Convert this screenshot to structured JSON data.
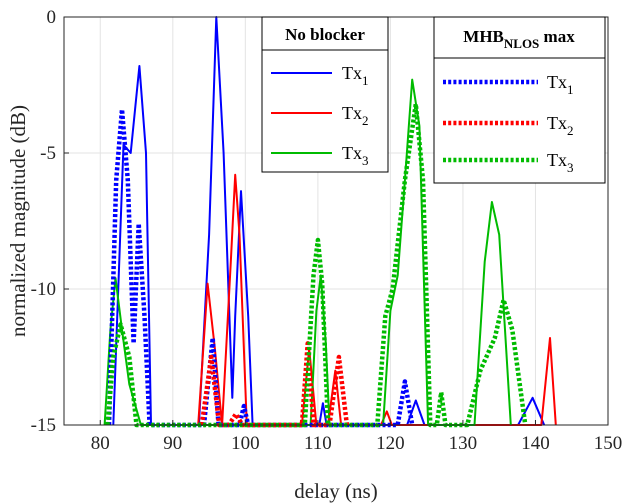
{
  "chart_data": {
    "type": "line",
    "xlabel": "delay (ns)",
    "ylabel": "normalized magnitude (dB)",
    "xlim": [
      75,
      150
    ],
    "ylim": [
      -15,
      0
    ],
    "xticks": [
      80,
      90,
      100,
      110,
      120,
      130,
      140,
      150
    ],
    "yticks": [
      -15,
      -10,
      -5,
      0
    ],
    "grid": true,
    "legends": [
      {
        "title": "No blocker",
        "placement": "top-center",
        "style": "solid",
        "entries": [
          {
            "base": "Tx",
            "sub": "1"
          },
          {
            "base": "Tx",
            "sub": "2"
          },
          {
            "base": "Tx",
            "sub": "3"
          }
        ]
      },
      {
        "title_base": "MHB",
        "title_sub": "NLOS",
        "title_tail": " max",
        "placement": "top-right",
        "style": "dotted",
        "entries": [
          {
            "base": "Tx",
            "sub": "1"
          },
          {
            "base": "Tx",
            "sub": "2"
          },
          {
            "base": "Tx",
            "sub": "3"
          }
        ]
      }
    ],
    "series": [
      {
        "color": "#0000ff",
        "style": "solid",
        "points": [
          [
            81.8,
            -15
          ],
          [
            83.2,
            -4.7
          ],
          [
            84.2,
            -5
          ],
          [
            85.4,
            -1.8
          ],
          [
            86.3,
            -5
          ],
          [
            87,
            -15
          ],
          [
            93.6,
            -15
          ],
          [
            95.0,
            -8
          ],
          [
            96.0,
            0
          ],
          [
            97.0,
            -5
          ],
          [
            98.2,
            -14
          ],
          [
            98.6,
            -11
          ],
          [
            99.4,
            -6.4
          ],
          [
            100.4,
            -11
          ],
          [
            101.0,
            -15
          ],
          [
            110.2,
            -15
          ],
          [
            110.7,
            -14.2
          ],
          [
            111.2,
            -15
          ],
          [
            122.3,
            -15
          ],
          [
            123.5,
            -14.1
          ],
          [
            124.7,
            -15
          ],
          [
            137.6,
            -15
          ],
          [
            139.6,
            -14.0
          ],
          [
            141.2,
            -15
          ]
        ]
      },
      {
        "color": "#ff0000",
        "style": "solid",
        "points": [
          [
            93.5,
            -15
          ],
          [
            94.8,
            -9.8
          ],
          [
            95.8,
            -12.2
          ],
          [
            96.8,
            -15
          ],
          [
            96.8,
            -15
          ],
          [
            98.0,
            -9
          ],
          [
            98.6,
            -5.8
          ],
          [
            99.2,
            -8
          ],
          [
            100.2,
            -15
          ],
          [
            107.8,
            -15
          ],
          [
            108.8,
            -12.2
          ],
          [
            109.8,
            -15
          ],
          [
            111.4,
            -15
          ],
          [
            112.4,
            -13.0
          ],
          [
            113.2,
            -15
          ],
          [
            118.7,
            -15
          ],
          [
            119.5,
            -14.5
          ],
          [
            120.2,
            -15
          ],
          [
            140.8,
            -15
          ],
          [
            142.0,
            -11.8
          ],
          [
            142.8,
            -15
          ]
        ]
      },
      {
        "color": "#00bb00",
        "style": "solid",
        "points": [
          [
            80.6,
            -15
          ],
          [
            81.4,
            -11.5
          ],
          [
            82.1,
            -9.6
          ],
          [
            83.0,
            -11.5
          ],
          [
            84.0,
            -13.5
          ],
          [
            85.6,
            -15
          ],
          [
            109.0,
            -15
          ],
          [
            109.8,
            -10.8
          ],
          [
            110.4,
            -9.5
          ],
          [
            111.1,
            -12
          ],
          [
            111.6,
            -15
          ],
          [
            119.0,
            -15
          ],
          [
            120.0,
            -10.8
          ],
          [
            121.0,
            -9.5
          ],
          [
            122.0,
            -6
          ],
          [
            123.0,
            -2.3
          ],
          [
            124.0,
            -4
          ],
          [
            125.2,
            -15
          ],
          [
            131.6,
            -15
          ],
          [
            133.0,
            -9
          ],
          [
            134.0,
            -6.8
          ],
          [
            135.0,
            -8
          ],
          [
            136.6,
            -15
          ]
        ]
      },
      {
        "color": "#0000ff",
        "style": "dotted",
        "points": [
          [
            81.2,
            -15
          ],
          [
            82.2,
            -6
          ],
          [
            83.0,
            -3.4
          ],
          [
            83.8,
            -6
          ],
          [
            84.6,
            -12
          ],
          [
            85.3,
            -7.6
          ],
          [
            86.1,
            -11
          ],
          [
            86.8,
            -15
          ],
          [
            94.3,
            -15
          ],
          [
            95.5,
            -11.8
          ],
          [
            96.3,
            -15
          ],
          [
            99.2,
            -15
          ],
          [
            99.8,
            -14.3
          ],
          [
            100.4,
            -15
          ],
          [
            121.0,
            -15
          ],
          [
            122.0,
            -13.4
          ],
          [
            123.0,
            -15
          ]
        ]
      },
      {
        "color": "#ff0000",
        "style": "dotted",
        "points": [
          [
            94.0,
            -15
          ],
          [
            95.3,
            -12.5
          ],
          [
            96.4,
            -15
          ],
          [
            97.7,
            -15
          ],
          [
            98.7,
            -14.6
          ],
          [
            99.6,
            -15
          ],
          [
            107.8,
            -15
          ],
          [
            108.6,
            -12.0
          ],
          [
            109.4,
            -15
          ],
          [
            111.6,
            -15
          ],
          [
            112.9,
            -12.5
          ],
          [
            114.0,
            -15
          ]
        ]
      },
      {
        "color": "#00bb00",
        "style": "dotted",
        "points": [
          [
            81.0,
            -15
          ],
          [
            81.8,
            -12.5
          ],
          [
            82.8,
            -11.3
          ],
          [
            84.0,
            -12.5
          ],
          [
            85.0,
            -15
          ],
          [
            108.2,
            -15
          ],
          [
            109.4,
            -9.5
          ],
          [
            110.0,
            -8.2
          ],
          [
            110.6,
            -9.8
          ],
          [
            111.4,
            -15
          ],
          [
            118.2,
            -15
          ],
          [
            119.3,
            -11
          ],
          [
            120.3,
            -10
          ],
          [
            122.0,
            -6
          ],
          [
            123.5,
            -3.2
          ],
          [
            124.5,
            -6
          ],
          [
            125.5,
            -15
          ],
          [
            126.4,
            -15
          ],
          [
            127.0,
            -13.8
          ],
          [
            127.6,
            -15
          ],
          [
            130.6,
            -15
          ],
          [
            132.4,
            -13
          ],
          [
            134.4,
            -11.8
          ],
          [
            135.6,
            -10.4
          ],
          [
            136.8,
            -11.5
          ],
          [
            138.6,
            -15
          ]
        ]
      }
    ]
  }
}
